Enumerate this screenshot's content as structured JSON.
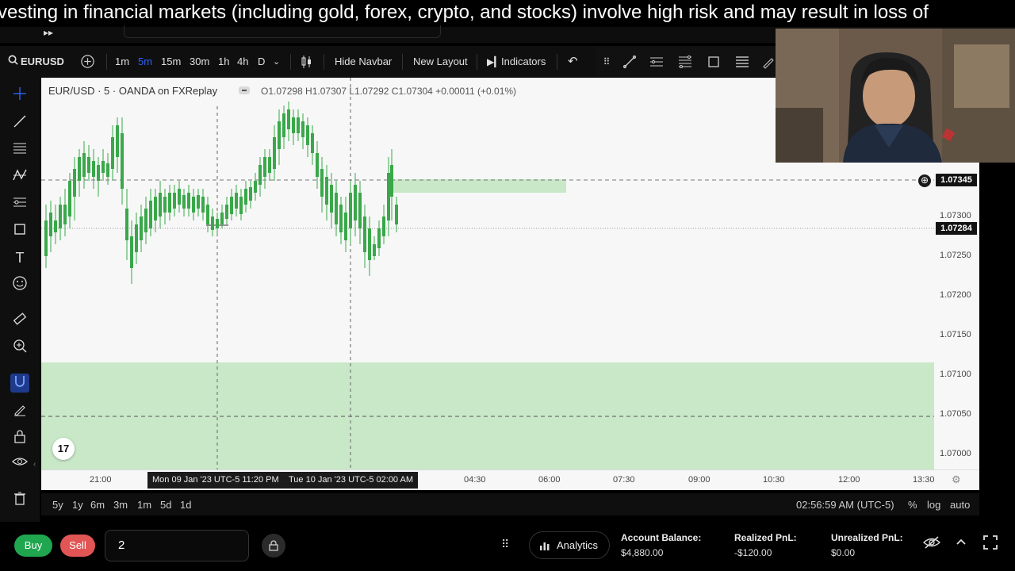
{
  "disclaimer": "vesting in financial markets (including gold, forex, crypto, and stocks) involve high risk and may result in loss of",
  "toolbar": {
    "symbol": "EURUSD",
    "intervals": [
      "1m",
      "5m",
      "15m",
      "30m",
      "1h",
      "4h",
      "D"
    ],
    "active_interval": "5m",
    "hide_navbar": "Hide Navbar",
    "new_layout": "New Layout",
    "indicators": "Indicators"
  },
  "chart": {
    "legend": "EUR/USD · 5 · OANDA on FXReplay",
    "ohlc": "O1.07298 H1.07307 L1.07292 C1.07304 +0.00011 (+0.01%)",
    "price_labels": [
      "1.07300",
      "1.07250",
      "1.07200",
      "1.07150",
      "1.07100",
      "1.07050",
      "1.07000"
    ],
    "price_tag_alert": "1.07345",
    "price_tag_current": "1.07284",
    "time_labels": [
      "21:00",
      "04:30",
      "06:00",
      "07:30",
      "09:00",
      "10:30",
      "12:00",
      "13:30"
    ],
    "crosshair_time_1": "Mon 09 Jan '23 UTC-5   11:20 PM",
    "crosshair_time_2": "Tue 10 Jan '23 UTC-5   02:00 AM",
    "logo_text": "17"
  },
  "rangebar": {
    "ranges": [
      "5y",
      "1y",
      "6m",
      "3m",
      "1m",
      "5d",
      "1d"
    ],
    "clock": "02:56:59 AM (UTC-5)",
    "percent": "%",
    "log": "log",
    "auto": "auto"
  },
  "tradebar": {
    "buy": "Buy",
    "sell": "Sell",
    "quantity": "2",
    "analytics": "Analytics",
    "account_balance_label": "Account Balance:",
    "account_balance_value": "$4,880.00",
    "realized_label": "Realized PnL:",
    "realized_value": "-$120.00",
    "unrealized_label": "Unrealized PnL:",
    "unrealized_value": "$0.00"
  },
  "colors": {
    "accent": "#2962ff",
    "buy": "#1fa64f",
    "sell": "#e25555",
    "zone": "#c8e8c8",
    "candle": "#3aa84a"
  }
}
